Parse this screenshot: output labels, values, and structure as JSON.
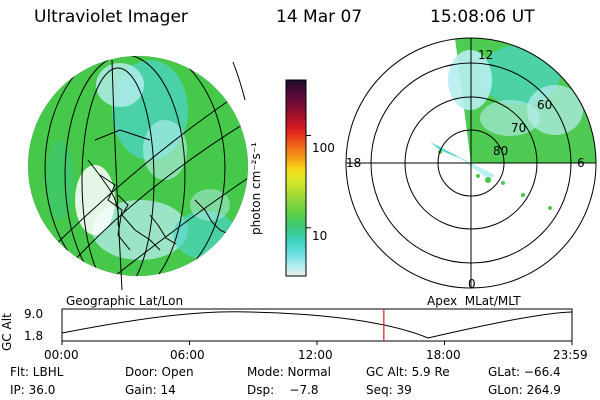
{
  "header": {
    "instrument": "Ultraviolet Imager",
    "date": "14 Mar 07",
    "time": "15:08:06 UT"
  },
  "geo_panel": {
    "label": "Geographic Lat/Lon"
  },
  "polar_panel": {
    "label": "Apex  MLat/MLT",
    "mlt_labels": {
      "top": "12",
      "left": "18",
      "right": "6",
      "bottom": "0"
    },
    "lat_rings": [
      "80",
      "70",
      "60"
    ]
  },
  "colorbar": {
    "unit_label": "photon cm⁻²s⁻¹",
    "ticks": [
      {
        "label": "100",
        "value": 100
      },
      {
        "label": "10",
        "value": 10
      }
    ],
    "range": [
      3,
      400
    ],
    "colors": [
      "#1a0a2a",
      "#5a0a3a",
      "#a0102a",
      "#e02020",
      "#f06018",
      "#f4a014",
      "#f6dc1e",
      "#d4e82a",
      "#9ad838",
      "#5ed046",
      "#3cc87a",
      "#3cd2be",
      "#6ee0e6",
      "#b4eef2",
      "#ececec"
    ]
  },
  "altitude_plot": {
    "ylabel": "GC Alt",
    "yticks": [
      "9.0",
      "1.8"
    ],
    "xticks": [
      "00:00",
      "06:00",
      "12:00",
      "18:00",
      "23:59"
    ],
    "marker_time_hours": 15.135,
    "marker_color": "#d02020"
  },
  "info": {
    "filter": "Flt: LBHL",
    "door": "Door: Open",
    "mode": "Mode: Normal",
    "gc_alt": "GC Alt: 5.9 Re",
    "glat": "GLat: −66.4",
    "ip": "IP: 36.0",
    "gain": "Gain: 14",
    "dsp": "Dsp:    −7.8",
    "seq": "Seq: 39",
    "glon": "GLon: 264.9"
  },
  "palette": {
    "green": "#46c84a",
    "cyan": "#4cd4c8",
    "lightcyan": "#b8eef0"
  }
}
